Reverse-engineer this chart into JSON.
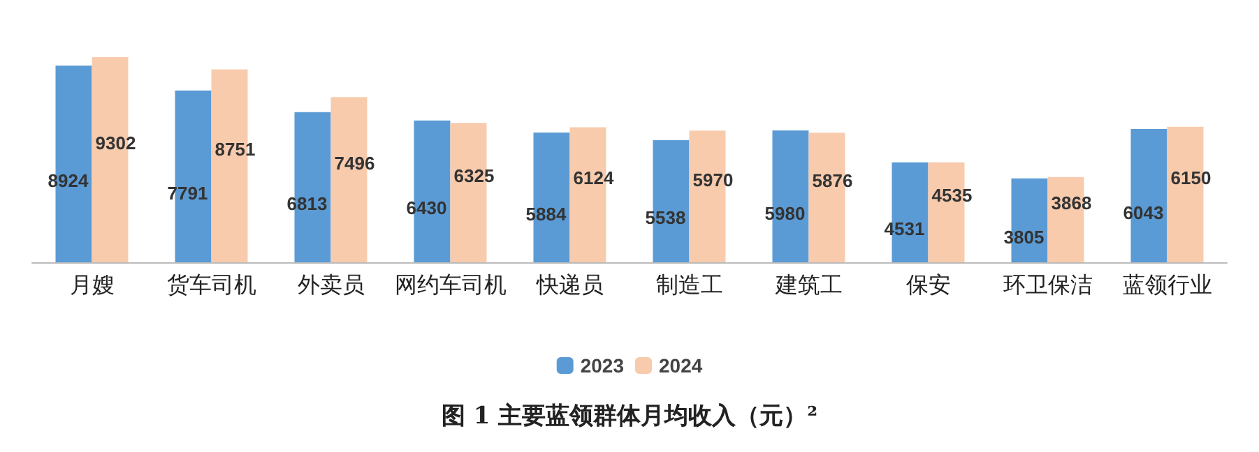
{
  "chart_data": {
    "type": "bar",
    "title": "图 1 主要蓝领群体月均收入（元）²",
    "categories": [
      "月嫂",
      "货车司机",
      "外卖员",
      "网约车司机",
      "快递员",
      "制造工",
      "建筑工",
      "保安",
      "环卫保洁",
      "蓝领行业"
    ],
    "series": [
      {
        "name": "2023",
        "color": "#5b9bd5",
        "values": [
          8924,
          7791,
          6813,
          6430,
          5884,
          5538,
          5980,
          4531,
          3805,
          6043
        ]
      },
      {
        "name": "2024",
        "color": "#f8cbad",
        "values": [
          9302,
          8751,
          7496,
          6325,
          6124,
          5970,
          5876,
          4535,
          3868,
          6150
        ]
      }
    ],
    "data_labels": true,
    "legend": "bottom"
  }
}
